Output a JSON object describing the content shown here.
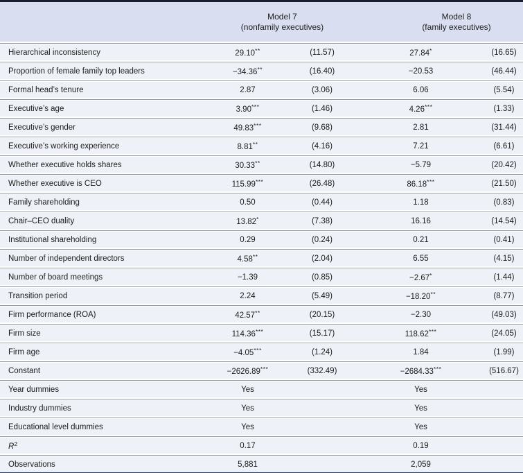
{
  "colors": {
    "top_rule": "#18212e",
    "bottom_rule": "#1e3a5f",
    "header_bg": "#d9def0",
    "row_bg": "#eef1f7",
    "hairline": "#939ba7",
    "text": "#1c1c1c"
  },
  "table": {
    "header": {
      "model7_line1": "Model 7",
      "model7_line2": "(nonfamily executives)",
      "model8_line1": "Model 8",
      "model8_line2": "(family executives)"
    },
    "rows": [
      {
        "label": "Hierarchical inconsistency",
        "m7_coef": "29.10",
        "m7_stars": "**",
        "m7_se": "(11.57)",
        "m8_coef": "27.84",
        "m8_stars": "*",
        "m8_se": "(16.65)"
      },
      {
        "label": "Proportion of female family top leaders",
        "m7_coef": "−34.36",
        "m7_stars": "**",
        "m7_se": "(16.40)",
        "m8_coef": "−20.53",
        "m8_stars": "",
        "m8_se": "(46.44)"
      },
      {
        "label": "Formal head’s tenure",
        "m7_coef": "2.87",
        "m7_stars": "",
        "m7_se": "(3.06)",
        "m8_coef": "6.06",
        "m8_stars": "",
        "m8_se": "(5.54)"
      },
      {
        "label": "Executive’s age",
        "m7_coef": "3.90",
        "m7_stars": "***",
        "m7_se": "(1.46)",
        "m8_coef": "4.26",
        "m8_stars": "***",
        "m8_se": "(1.33)"
      },
      {
        "label": "Executive’s gender",
        "m7_coef": "49.83",
        "m7_stars": "***",
        "m7_se": "(9.68)",
        "m8_coef": "2.81",
        "m8_stars": "",
        "m8_se": "(31.44)"
      },
      {
        "label": "Executive’s working experience",
        "m7_coef": "8.81",
        "m7_stars": "**",
        "m7_se": "(4.16)",
        "m8_coef": "7.21",
        "m8_stars": "",
        "m8_se": "(6.61)"
      },
      {
        "label": "Whether executive holds shares",
        "m7_coef": "30.33",
        "m7_stars": "**",
        "m7_se": "(14.80)",
        "m8_coef": "−5.79",
        "m8_stars": "",
        "m8_se": "(20.42)"
      },
      {
        "label": "Whether executive is CEO",
        "m7_coef": "115.99",
        "m7_stars": "***",
        "m7_se": "(26.48)",
        "m8_coef": "86.18",
        "m8_stars": "***",
        "m8_se": "(21.50)"
      },
      {
        "label": "Family shareholding",
        "m7_coef": "0.50",
        "m7_stars": "",
        "m7_se": "(0.44)",
        "m8_coef": "1.18",
        "m8_stars": "",
        "m8_se": "(0.83)"
      },
      {
        "label": "Chair–CEO duality",
        "m7_coef": "13.82",
        "m7_stars": "*",
        "m7_se": "(7.38)",
        "m8_coef": "16.16",
        "m8_stars": "",
        "m8_se": "(14.54)"
      },
      {
        "label": "Institutional shareholding",
        "m7_coef": "0.29",
        "m7_stars": "",
        "m7_se": "(0.24)",
        "m8_coef": "0.21",
        "m8_stars": "",
        "m8_se": "(0.41)"
      },
      {
        "label": "Number of independent directors",
        "m7_coef": "4.58",
        "m7_stars": "**",
        "m7_se": "(2.04)",
        "m8_coef": "6.55",
        "m8_stars": "",
        "m8_se": "(4.15)"
      },
      {
        "label": "Number of board meetings",
        "m7_coef": "−1.39",
        "m7_stars": "",
        "m7_se": "(0.85)",
        "m8_coef": "−2.67",
        "m8_stars": "*",
        "m8_se": "(1.44)"
      },
      {
        "label": "Transition period",
        "m7_coef": "2.24",
        "m7_stars": "",
        "m7_se": "(5.49)",
        "m8_coef": "−18.20",
        "m8_stars": "**",
        "m8_se": "(8.77)"
      },
      {
        "label": "Firm performance (ROA)",
        "m7_coef": "42.57",
        "m7_stars": "**",
        "m7_se": "(20.15)",
        "m8_coef": "−2.30",
        "m8_stars": "",
        "m8_se": "(49.03)"
      },
      {
        "label": "Firm size",
        "m7_coef": "114.36",
        "m7_stars": "***",
        "m7_se": "(15.17)",
        "m8_coef": "118.62",
        "m8_stars": "***",
        "m8_se": "(24.05)"
      },
      {
        "label": "Firm age",
        "m7_coef": "−4.05",
        "m7_stars": "***",
        "m7_se": "(1.24)",
        "m8_coef": "1.84",
        "m8_stars": "",
        "m8_se": "(1.99)"
      },
      {
        "label": "Constant",
        "m7_coef": "−2626.89",
        "m7_stars": "***",
        "m7_se": "(332.49)",
        "m8_coef": "−2684.33",
        "m8_stars": "***",
        "m8_se": "(516.67)"
      }
    ],
    "summary_rows": [
      {
        "label": "Year dummies",
        "m7": "Yes",
        "m8": "Yes",
        "rsq": false
      },
      {
        "label": "Industry dummies",
        "m7": "Yes",
        "m8": "Yes",
        "rsq": false
      },
      {
        "label": "Educational level dummies",
        "m7": "Yes",
        "m8": "Yes",
        "rsq": false
      },
      {
        "label": "R2",
        "m7": "0.17",
        "m8": "0.19",
        "rsq": true
      },
      {
        "label": "Observations",
        "m7": "5,881",
        "m8": "2,059",
        "rsq": false
      }
    ]
  }
}
